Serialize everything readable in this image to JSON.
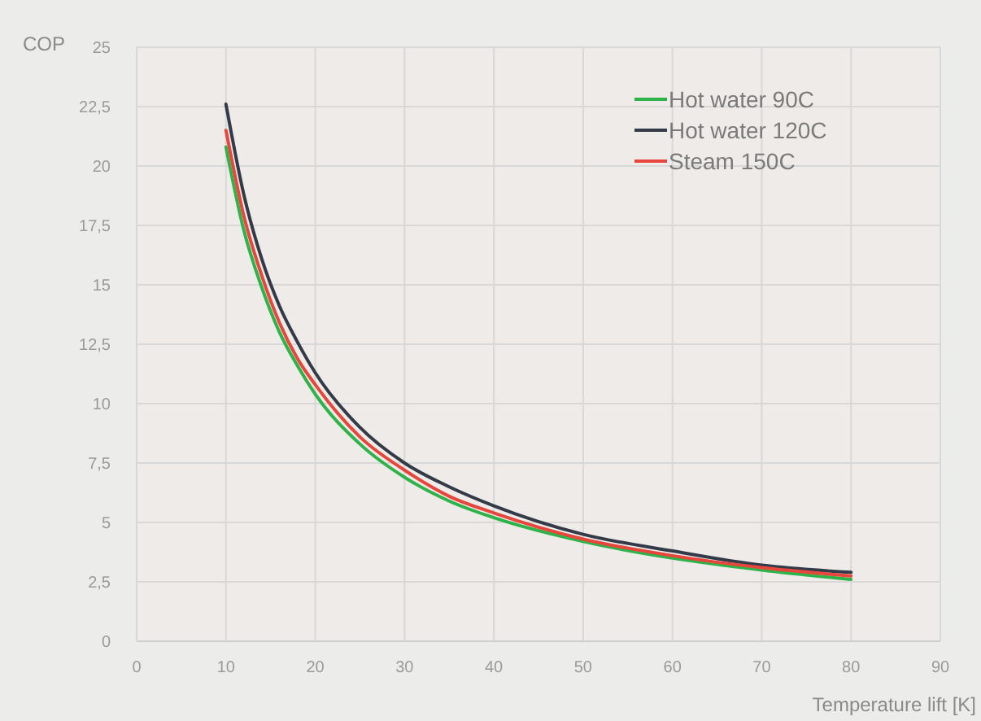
{
  "chart_data": {
    "type": "line",
    "xlabel": "Temperature lift [K]",
    "ylabel": "COP",
    "xlim": [
      0,
      90
    ],
    "xticks": [
      0,
      10,
      20,
      30,
      40,
      50,
      60,
      70,
      80,
      90
    ],
    "ylim": [
      0,
      25
    ],
    "yticks": [
      0,
      {
        "value": 2.5,
        "label": "2,5"
      },
      5,
      {
        "value": 7.5,
        "label": "7,5"
      },
      10,
      {
        "value": 12.5,
        "label": "12,5"
      },
      15,
      {
        "value": 17.5,
        "label": "17,5"
      },
      20,
      {
        "value": 22.5,
        "label": "22,5"
      },
      25
    ],
    "x": [
      10,
      12,
      14,
      16,
      18,
      20,
      25,
      30,
      35,
      40,
      50,
      60,
      70,
      80
    ],
    "grid": true,
    "legend": "top right",
    "marker": "none",
    "line_style": "solid",
    "series": [
      {
        "name": "Hot water 90C",
        "color": "#2db34a",
        "values": [
          20.8,
          17.3,
          14.9,
          13.0,
          11.6,
          10.4,
          8.3,
          6.9,
          5.9,
          5.2,
          4.2,
          3.5,
          3.0,
          2.6
        ]
      },
      {
        "name": "Hot water 120C",
        "color": "#333a48",
        "values": [
          22.6,
          18.8,
          16.1,
          14.1,
          12.6,
          11.3,
          9.0,
          7.5,
          6.5,
          5.7,
          4.5,
          3.8,
          3.2,
          2.9
        ]
      },
      {
        "name": "Steam 150C",
        "color": "#e8453c",
        "values": [
          21.5,
          17.9,
          15.4,
          13.4,
          11.9,
          10.8,
          8.6,
          7.2,
          6.1,
          5.4,
          4.3,
          3.6,
          3.1,
          2.75
        ]
      }
    ]
  }
}
